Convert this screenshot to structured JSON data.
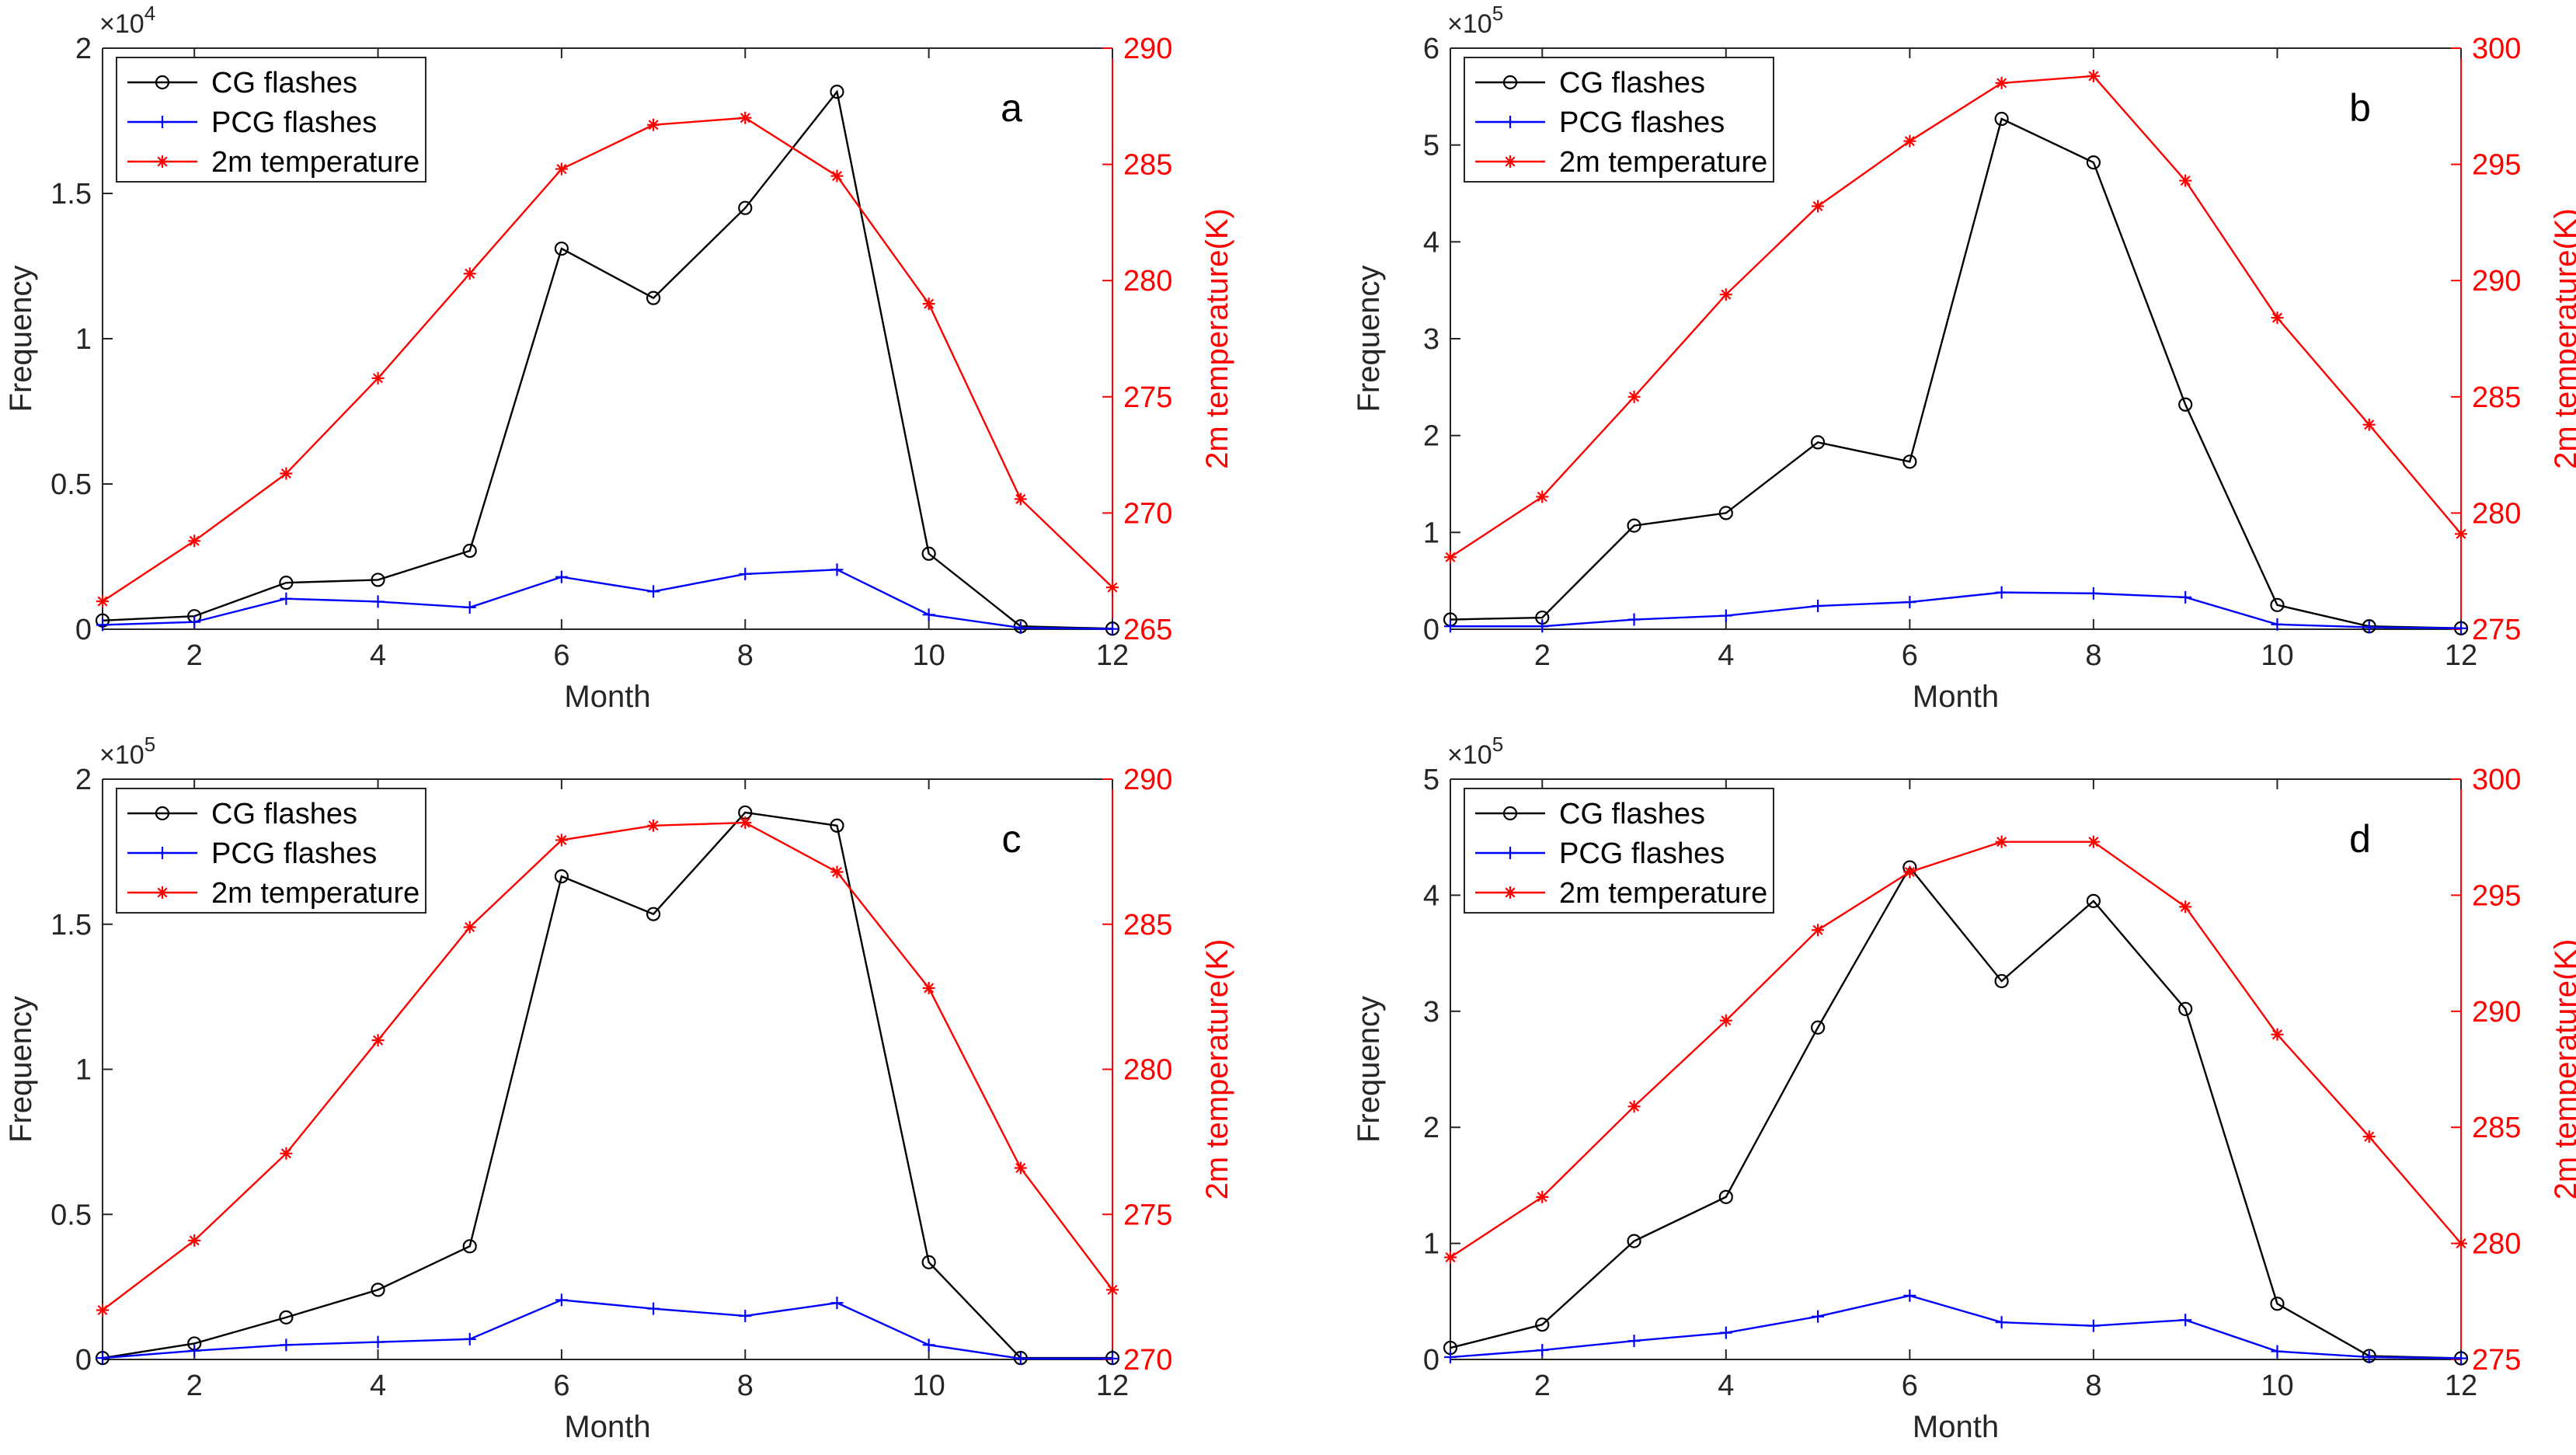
{
  "figure": {
    "panel_count": 4
  },
  "chart_data": [
    {
      "type": "line",
      "panel_label": "a",
      "xlabel": "Month",
      "ylabel": "Frequency",
      "y2label": "2m temperature(K)",
      "x": [
        1,
        2,
        3,
        4,
        5,
        6,
        7,
        8,
        9,
        10,
        11,
        12
      ],
      "xlim": [
        1,
        12
      ],
      "xticks": [
        2,
        4,
        6,
        8,
        10,
        12
      ],
      "ylim": [
        0,
        20000
      ],
      "yticks": [
        0,
        5000,
        10000,
        15000,
        20000
      ],
      "ytick_labels": [
        "0",
        "0.5",
        "1",
        "1.5",
        "2"
      ],
      "y_exponent_base": "×10",
      "y_exponent_power": "4",
      "y2lim": [
        265,
        290
      ],
      "y2ticks": [
        265,
        270,
        275,
        280,
        285,
        290
      ],
      "legend_position": "top-left",
      "series": [
        {
          "name": "CG flashes",
          "axis": "left",
          "color": "#000000",
          "marker": "circle",
          "values": [
            300,
            450,
            1600,
            1700,
            2700,
            13100,
            11400,
            14500,
            18500,
            2600,
            100,
            20
          ]
        },
        {
          "name": "PCG flashes",
          "axis": "left",
          "color": "#0000ff",
          "marker": "plus",
          "values": [
            150,
            250,
            1050,
            950,
            750,
            1800,
            1300,
            1900,
            2050,
            500,
            50,
            10
          ]
        },
        {
          "name": "2m temperature",
          "axis": "right",
          "color": "#ff0000",
          "marker": "asterisk",
          "values": [
            266.2,
            268.8,
            271.7,
            275.8,
            280.3,
            284.8,
            286.7,
            287.0,
            284.5,
            279.0,
            270.6,
            266.8
          ]
        }
      ]
    },
    {
      "type": "line",
      "panel_label": "b",
      "xlabel": "Month",
      "ylabel": "Frequency",
      "y2label": "2m temperature(K)",
      "x": [
        1,
        2,
        3,
        4,
        5,
        6,
        7,
        8,
        9,
        10,
        11,
        12
      ],
      "xlim": [
        1,
        12
      ],
      "xticks": [
        2,
        4,
        6,
        8,
        10,
        12
      ],
      "ylim": [
        0,
        600000
      ],
      "yticks": [
        0,
        100000,
        200000,
        300000,
        400000,
        500000,
        600000
      ],
      "ytick_labels": [
        "0",
        "1",
        "2",
        "3",
        "4",
        "5",
        "6"
      ],
      "y_exponent_base": "×10",
      "y_exponent_power": "5",
      "y2lim": [
        275,
        300
      ],
      "y2ticks": [
        275,
        280,
        285,
        290,
        295,
        300
      ],
      "legend_position": "top-left",
      "series": [
        {
          "name": "CG flashes",
          "axis": "left",
          "color": "#000000",
          "marker": "circle",
          "values": [
            10000,
            12000,
            107000,
            120000,
            193000,
            173000,
            527000,
            482000,
            232000,
            25000,
            3000,
            1000
          ]
        },
        {
          "name": "PCG flashes",
          "axis": "left",
          "color": "#0000ff",
          "marker": "plus",
          "values": [
            3000,
            3000,
            10000,
            14000,
            24000,
            28000,
            38000,
            37000,
            33000,
            5000,
            2000,
            1000
          ]
        },
        {
          "name": "2m temperature",
          "axis": "right",
          "color": "#ff0000",
          "marker": "asterisk",
          "values": [
            278.1,
            280.7,
            285.0,
            289.4,
            293.2,
            296.0,
            298.5,
            298.8,
            294.3,
            288.4,
            283.8,
            279.1
          ]
        }
      ]
    },
    {
      "type": "line",
      "panel_label": "c",
      "xlabel": "Month",
      "ylabel": "Frequency",
      "y2label": "2m temperature(K)",
      "x": [
        1,
        2,
        3,
        4,
        5,
        6,
        7,
        8,
        9,
        10,
        11,
        12
      ],
      "xlim": [
        1,
        12
      ],
      "xticks": [
        2,
        4,
        6,
        8,
        10,
        12
      ],
      "ylim": [
        0,
        200000
      ],
      "yticks": [
        0,
        50000,
        100000,
        150000,
        200000
      ],
      "ytick_labels": [
        "0",
        "0.5",
        "1",
        "1.5",
        "2"
      ],
      "y_exponent_base": "×10",
      "y_exponent_power": "5",
      "y2lim": [
        270,
        290
      ],
      "y2ticks": [
        270,
        275,
        280,
        285,
        290
      ],
      "legend_position": "top-left",
      "series": [
        {
          "name": "CG flashes",
          "axis": "left",
          "color": "#000000",
          "marker": "circle",
          "values": [
            500,
            5500,
            14500,
            24000,
            39000,
            166500,
            153500,
            188500,
            184000,
            33500,
            500,
            500
          ]
        },
        {
          "name": "PCG flashes",
          "axis": "left",
          "color": "#0000ff",
          "marker": "plus",
          "values": [
            500,
            3000,
            5000,
            6000,
            7000,
            20500,
            17500,
            15000,
            19500,
            5000,
            300,
            300
          ]
        },
        {
          "name": "2m temperature",
          "axis": "right",
          "color": "#ff0000",
          "marker": "asterisk",
          "values": [
            271.7,
            274.1,
            277.1,
            281.0,
            284.9,
            287.9,
            288.4,
            288.5,
            286.8,
            282.8,
            276.6,
            272.4
          ]
        }
      ]
    },
    {
      "type": "line",
      "panel_label": "d",
      "xlabel": "Month",
      "ylabel": "Frequency",
      "y2label": "2m temperature(K)",
      "x": [
        1,
        2,
        3,
        4,
        5,
        6,
        7,
        8,
        9,
        10,
        11,
        12
      ],
      "xlim": [
        1,
        12
      ],
      "xticks": [
        2,
        4,
        6,
        8,
        10,
        12
      ],
      "ylim": [
        0,
        500000
      ],
      "yticks": [
        0,
        100000,
        200000,
        300000,
        400000,
        500000
      ],
      "ytick_labels": [
        "0",
        "1",
        "2",
        "3",
        "4",
        "5"
      ],
      "y_exponent_base": "×10",
      "y_exponent_power": "5",
      "y2lim": [
        275,
        300
      ],
      "y2ticks": [
        275,
        280,
        285,
        290,
        295,
        300
      ],
      "legend_position": "top-left",
      "series": [
        {
          "name": "CG flashes",
          "axis": "left",
          "color": "#000000",
          "marker": "circle",
          "values": [
            10000,
            30000,
            102000,
            140000,
            286000,
            424000,
            326000,
            395000,
            302000,
            48000,
            3000,
            1000
          ]
        },
        {
          "name": "PCG flashes",
          "axis": "left",
          "color": "#0000ff",
          "marker": "plus",
          "values": [
            2000,
            8000,
            16000,
            23000,
            37000,
            55000,
            32000,
            29000,
            34000,
            7000,
            2000,
            1000
          ]
        },
        {
          "name": "2m temperature",
          "axis": "right",
          "color": "#ff0000",
          "marker": "asterisk",
          "values": [
            279.4,
            282.0,
            285.9,
            289.6,
            293.5,
            296.0,
            297.3,
            297.3,
            294.5,
            289.0,
            284.6,
            280.0
          ]
        }
      ]
    }
  ]
}
